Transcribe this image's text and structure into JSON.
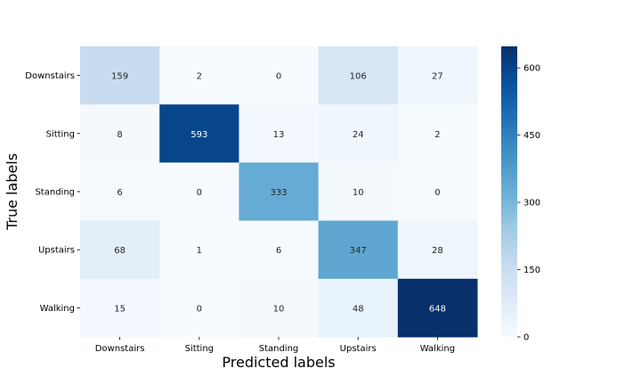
{
  "chart_data": {
    "type": "heatmap",
    "title": "",
    "xlabel": "Predicted labels",
    "ylabel": "True labels",
    "x_categories": [
      "Downstairs",
      "Sitting",
      "Standing",
      "Upstairs",
      "Walking"
    ],
    "y_categories": [
      "Downstairs",
      "Sitting",
      "Standing",
      "Upstairs",
      "Walking"
    ],
    "values": [
      [
        159,
        2,
        0,
        106,
        27
      ],
      [
        8,
        593,
        13,
        24,
        2
      ],
      [
        6,
        0,
        333,
        10,
        0
      ],
      [
        68,
        1,
        6,
        347,
        28
      ],
      [
        15,
        0,
        10,
        48,
        648
      ]
    ],
    "colormap": "Blues",
    "color_range": [
      0,
      648
    ],
    "colorbar_ticks": [
      0,
      150,
      300,
      450,
      600
    ],
    "low_color": "#f7fbff",
    "high_color": "#08306b"
  }
}
